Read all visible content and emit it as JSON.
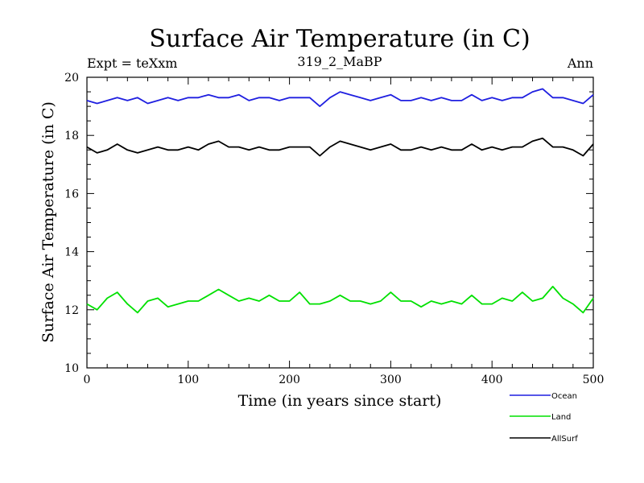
{
  "chart_data": {
    "type": "line",
    "title": "Surface Air Temperature (in C)",
    "subtitle_left": "Expt = teXxm",
    "subtitle_center": "319_2_MaBP",
    "subtitle_right": "Ann",
    "xlabel": "Time (in years since start)",
    "ylabel": "Surface Air Temperature (in C)",
    "xlim": [
      0,
      500
    ],
    "ylim": [
      10,
      20
    ],
    "xticks": [
      0,
      100,
      200,
      300,
      400,
      500
    ],
    "yticks": [
      10,
      12,
      14,
      16,
      18,
      20
    ],
    "x_tick_labels": [
      "0",
      "100",
      "200",
      "300",
      "400",
      "500"
    ],
    "y_tick_labels": [
      "10",
      "12",
      "14",
      "16",
      "18",
      "20"
    ],
    "grid": false,
    "legend_position": "bottom-right-outside",
    "series": [
      {
        "name": "Ocean",
        "color": "#1f1fe0",
        "x": [
          0,
          10,
          20,
          30,
          40,
          50,
          60,
          70,
          80,
          90,
          100,
          110,
          120,
          130,
          140,
          150,
          160,
          170,
          180,
          190,
          200,
          210,
          220,
          230,
          240,
          250,
          260,
          270,
          280,
          290,
          300,
          310,
          320,
          330,
          340,
          350,
          360,
          370,
          380,
          390,
          400,
          410,
          420,
          430,
          440,
          450,
          460,
          470,
          480,
          490,
          500
        ],
        "values": [
          19.2,
          19.1,
          19.2,
          19.3,
          19.2,
          19.3,
          19.1,
          19.2,
          19.3,
          19.2,
          19.3,
          19.3,
          19.4,
          19.3,
          19.3,
          19.4,
          19.2,
          19.3,
          19.3,
          19.2,
          19.3,
          19.3,
          19.3,
          19.0,
          19.3,
          19.5,
          19.4,
          19.3,
          19.2,
          19.3,
          19.4,
          19.2,
          19.2,
          19.3,
          19.2,
          19.3,
          19.2,
          19.2,
          19.4,
          19.2,
          19.3,
          19.2,
          19.3,
          19.3,
          19.5,
          19.6,
          19.3,
          19.3,
          19.2,
          19.1,
          19.4
        ]
      },
      {
        "name": "Land",
        "color": "#00e000",
        "x": [
          0,
          10,
          20,
          30,
          40,
          50,
          60,
          70,
          80,
          90,
          100,
          110,
          120,
          130,
          140,
          150,
          160,
          170,
          180,
          190,
          200,
          210,
          220,
          230,
          240,
          250,
          260,
          270,
          280,
          290,
          300,
          310,
          320,
          330,
          340,
          350,
          360,
          370,
          380,
          390,
          400,
          410,
          420,
          430,
          440,
          450,
          460,
          470,
          480,
          490,
          500
        ],
        "values": [
          12.2,
          12.0,
          12.4,
          12.6,
          12.2,
          11.9,
          12.3,
          12.4,
          12.1,
          12.2,
          12.3,
          12.3,
          12.5,
          12.7,
          12.5,
          12.3,
          12.4,
          12.3,
          12.5,
          12.3,
          12.3,
          12.6,
          12.2,
          12.2,
          12.3,
          12.5,
          12.3,
          12.3,
          12.2,
          12.3,
          12.6,
          12.3,
          12.3,
          12.1,
          12.3,
          12.2,
          12.3,
          12.2,
          12.5,
          12.2,
          12.2,
          12.4,
          12.3,
          12.6,
          12.3,
          12.4,
          12.8,
          12.4,
          12.2,
          11.9,
          12.4
        ]
      },
      {
        "name": "AllSurf",
        "color": "#000000",
        "x": [
          0,
          10,
          20,
          30,
          40,
          50,
          60,
          70,
          80,
          90,
          100,
          110,
          120,
          130,
          140,
          150,
          160,
          170,
          180,
          190,
          200,
          210,
          220,
          230,
          240,
          250,
          260,
          270,
          280,
          290,
          300,
          310,
          320,
          330,
          340,
          350,
          360,
          370,
          380,
          390,
          400,
          410,
          420,
          430,
          440,
          450,
          460,
          470,
          480,
          490,
          500
        ],
        "values": [
          17.6,
          17.4,
          17.5,
          17.7,
          17.5,
          17.4,
          17.5,
          17.6,
          17.5,
          17.5,
          17.6,
          17.5,
          17.7,
          17.8,
          17.6,
          17.6,
          17.5,
          17.6,
          17.5,
          17.5,
          17.6,
          17.6,
          17.6,
          17.3,
          17.6,
          17.8,
          17.7,
          17.6,
          17.5,
          17.6,
          17.7,
          17.5,
          17.5,
          17.6,
          17.5,
          17.6,
          17.5,
          17.5,
          17.7,
          17.5,
          17.6,
          17.5,
          17.6,
          17.6,
          17.8,
          17.9,
          17.6,
          17.6,
          17.5,
          17.3,
          17.7
        ]
      }
    ]
  }
}
